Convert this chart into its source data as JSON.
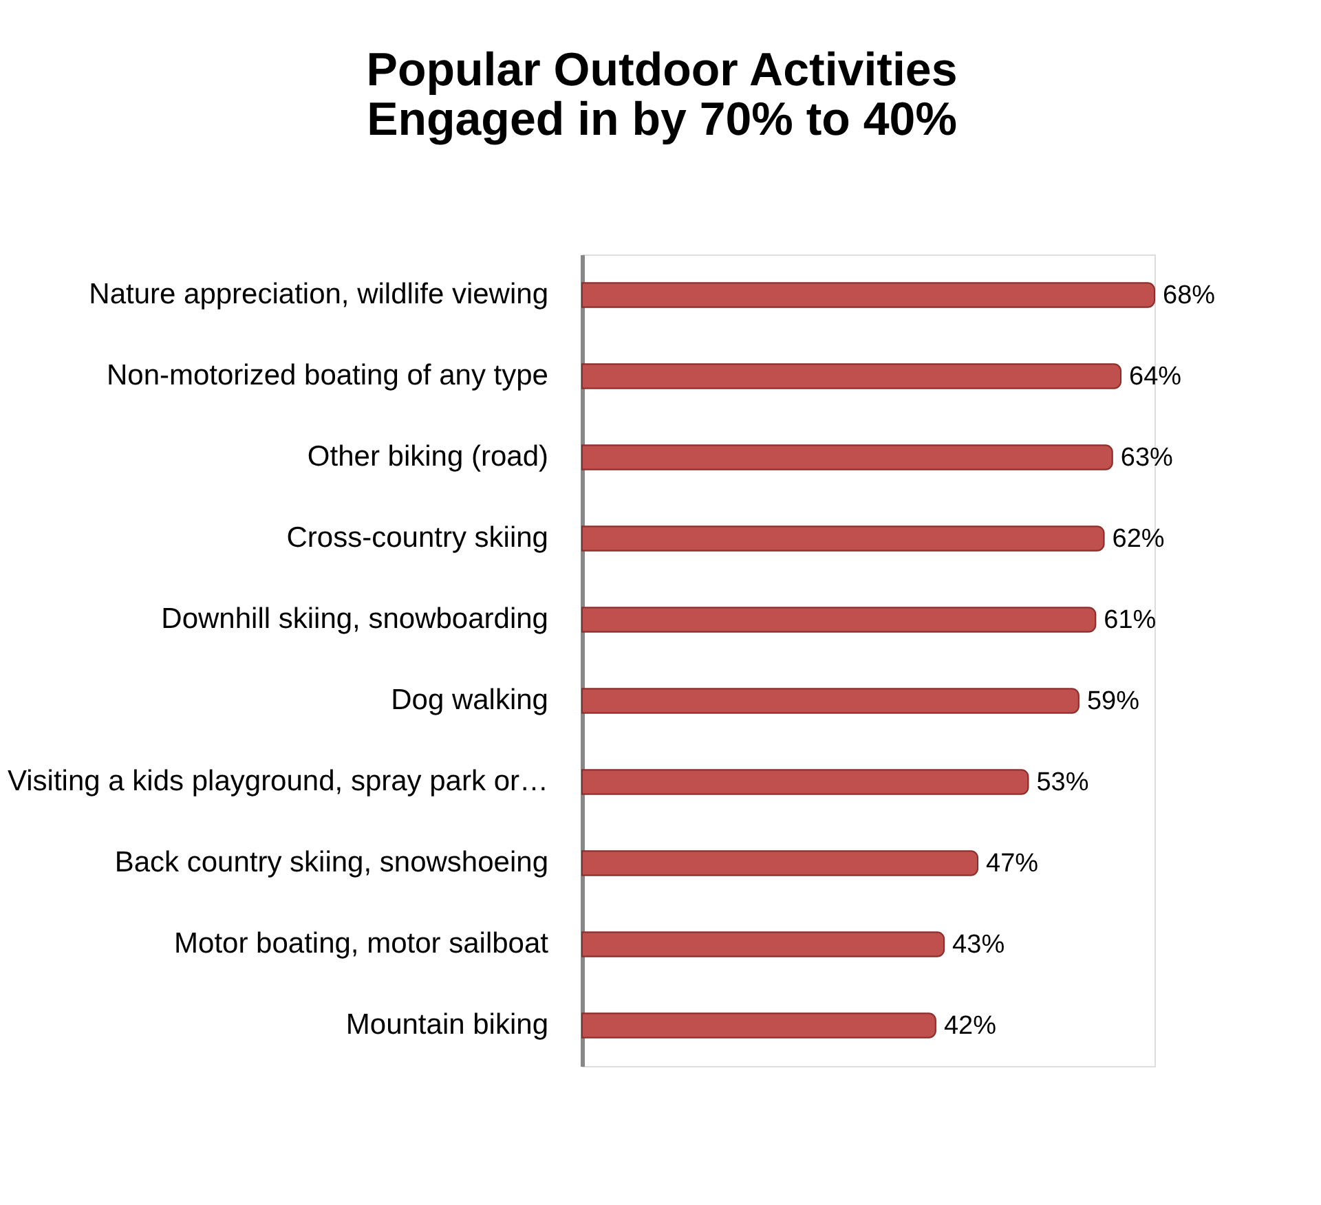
{
  "chart_data": {
    "type": "bar",
    "orientation": "horizontal",
    "title": "Popular Outdoor Activities\nEngaged in by 70% to 40%",
    "categories": [
      "Nature appreciation, wildlife viewing",
      "Non-motorized boating of any type",
      "Other biking (road)",
      "Cross-country skiing",
      "Downhill skiing, snowboarding",
      "Dog walking",
      "Visiting a kids playground, spray park or…",
      "Back country skiing, snowshoeing",
      "Motor boating, motor sailboat",
      "Mountain biking"
    ],
    "values": [
      68,
      64,
      63,
      62,
      61,
      59,
      53,
      47,
      43,
      42
    ],
    "value_labels": [
      "68%",
      "64%",
      "63%",
      "62%",
      "61%",
      "59%",
      "53%",
      "47%",
      "43%",
      "42%"
    ],
    "color": "#c0504d",
    "tick_labels": "y"
  }
}
